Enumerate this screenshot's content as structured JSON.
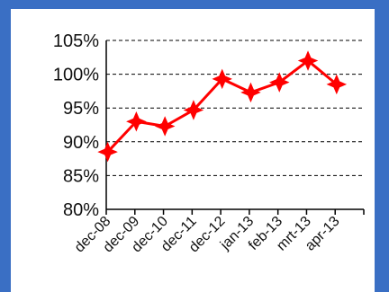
{
  "chart_data": {
    "type": "line",
    "title": "",
    "xlabel": "",
    "ylabel": "",
    "categories": [
      "dec-08",
      "dec-09",
      "dec-10",
      "dec-11",
      "dec-12",
      "jan-13",
      "feb-13",
      "mrt-13",
      "apr-13"
    ],
    "series": [
      {
        "values": [
          88.5,
          93.0,
          92.3,
          94.7,
          99.3,
          97.3,
          98.8,
          102.0,
          98.5
        ]
      }
    ],
    "y_ticks": [
      "80%",
      "85%",
      "90%",
      "95%",
      "100%",
      "105%"
    ],
    "ylim": [
      80,
      105
    ],
    "grid": "horizontal dashed",
    "legend": "none",
    "colors": {
      "series": "#ff0000",
      "frame": "#3a6fc4",
      "background": "#ffffff",
      "axis": "#000000"
    }
  }
}
